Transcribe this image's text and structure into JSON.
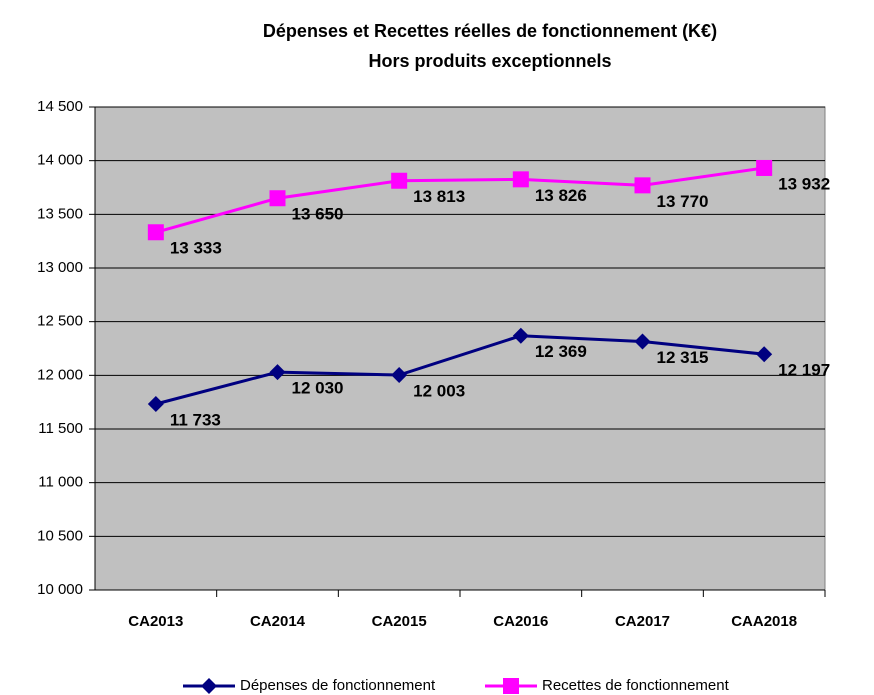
{
  "chart_data": {
    "type": "line",
    "title": "Dépenses et Recettes réelles de fonctionnement (K€)",
    "subtitle": "Hors produits exceptionnels",
    "categories": [
      "CA2013",
      "CA2014",
      "CA2015",
      "CA2016",
      "CA2017",
      "CAA2018"
    ],
    "series": [
      {
        "name": "Dépenses de fonctionnement",
        "color": "#000080",
        "marker": "diamond",
        "values": [
          11733,
          12030,
          12003,
          12369,
          12315,
          12197
        ],
        "value_labels": [
          "11 733",
          "12 030",
          "12 003",
          "12 369",
          "12 315",
          "12 197"
        ]
      },
      {
        "name": "Recettes de fonctionnement",
        "color": "#ff00ff",
        "marker": "square",
        "values": [
          13333,
          13650,
          13813,
          13826,
          13770,
          13932
        ],
        "value_labels": [
          "13 333",
          "13 650",
          "13 813",
          "13 826",
          "13 770",
          "13 932"
        ]
      }
    ],
    "ylim": [
      10000,
      14500
    ],
    "yticks": [
      {
        "value": 10000,
        "label": "10 000"
      },
      {
        "value": 10500,
        "label": "10 500"
      },
      {
        "value": 11000,
        "label": "11 000"
      },
      {
        "value": 11500,
        "label": "11 500"
      },
      {
        "value": 12000,
        "label": "12 000"
      },
      {
        "value": 12500,
        "label": "12 500"
      },
      {
        "value": 13000,
        "label": "13 000"
      },
      {
        "value": 13500,
        "label": "13 500"
      },
      {
        "value": 14000,
        "label": "14 000"
      },
      {
        "value": 14500,
        "label": "14 500"
      }
    ],
    "grid": true,
    "plot_background": "#c0c0c0",
    "legend": "bottom"
  }
}
